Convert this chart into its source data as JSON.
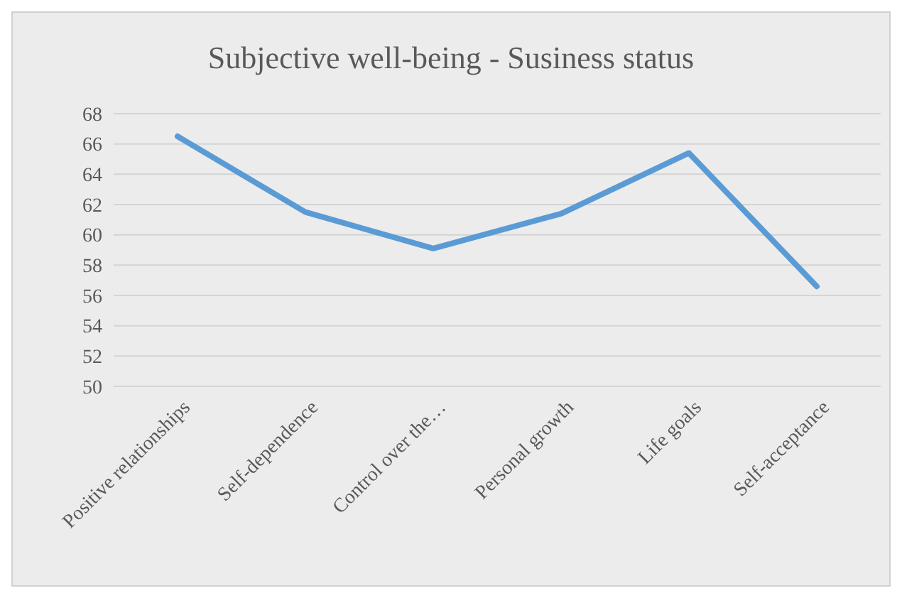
{
  "chart_data": {
    "type": "line",
    "title": "Subjective well-being - Susiness status",
    "categories": [
      "Positive relationships",
      "Self-dependence",
      "Control over the…",
      "Personal growth",
      "Life goals",
      "Self-acceptance"
    ],
    "values": [
      66.5,
      61.5,
      59.1,
      61.4,
      65.4,
      56.6
    ],
    "color": "#5b9bd5",
    "ylim": [
      50,
      68
    ],
    "yticks": [
      50,
      52,
      54,
      56,
      58,
      60,
      62,
      64,
      66,
      68
    ],
    "grid": "y",
    "marker": "none",
    "line_style": "solid"
  }
}
